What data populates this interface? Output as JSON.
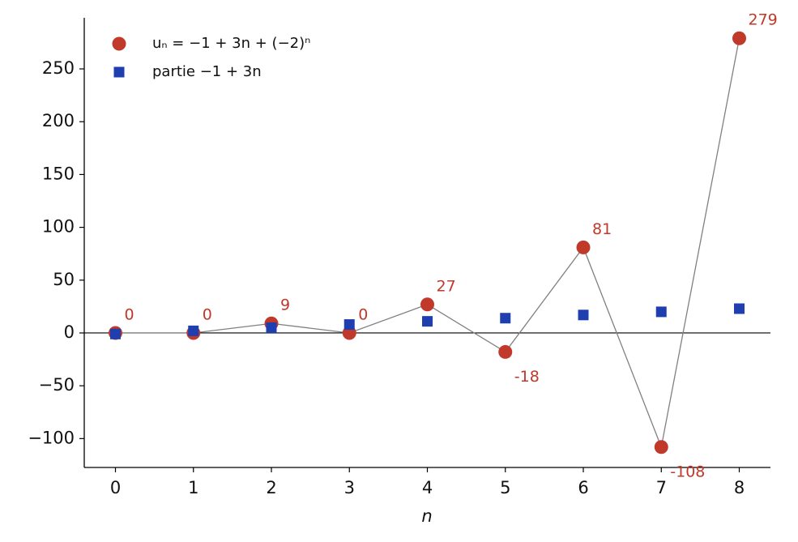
{
  "chart_data": {
    "type": "scatter",
    "x": [
      0,
      1,
      2,
      3,
      4,
      5,
      6,
      7,
      8
    ],
    "series": [
      {
        "name": "uₙ = −1 + 3n + (−2)ⁿ",
        "color": "#c0392b",
        "marker": "circle",
        "line_color": "#808080",
        "values": [
          0,
          0,
          9,
          0,
          27,
          -18,
          81,
          -108,
          279
        ]
      },
      {
        "name": "partie −1 + 3n",
        "color": "#1f3fb0",
        "marker": "square",
        "values": [
          -1,
          2,
          5,
          8,
          11,
          14,
          17,
          20,
          23
        ]
      }
    ],
    "xlabel": "n",
    "xlim": [
      -0.4,
      8.4
    ],
    "xticks": [
      0,
      1,
      2,
      3,
      4,
      5,
      6,
      7,
      8
    ],
    "ylim": [
      -127.35,
      298.35
    ],
    "yticks": [
      {
        "value": -100,
        "label": "−100"
      },
      {
        "value": -50,
        "label": "−50"
      },
      0,
      50,
      100,
      150,
      200,
      250
    ],
    "legend": "upper left",
    "grid": false
  }
}
